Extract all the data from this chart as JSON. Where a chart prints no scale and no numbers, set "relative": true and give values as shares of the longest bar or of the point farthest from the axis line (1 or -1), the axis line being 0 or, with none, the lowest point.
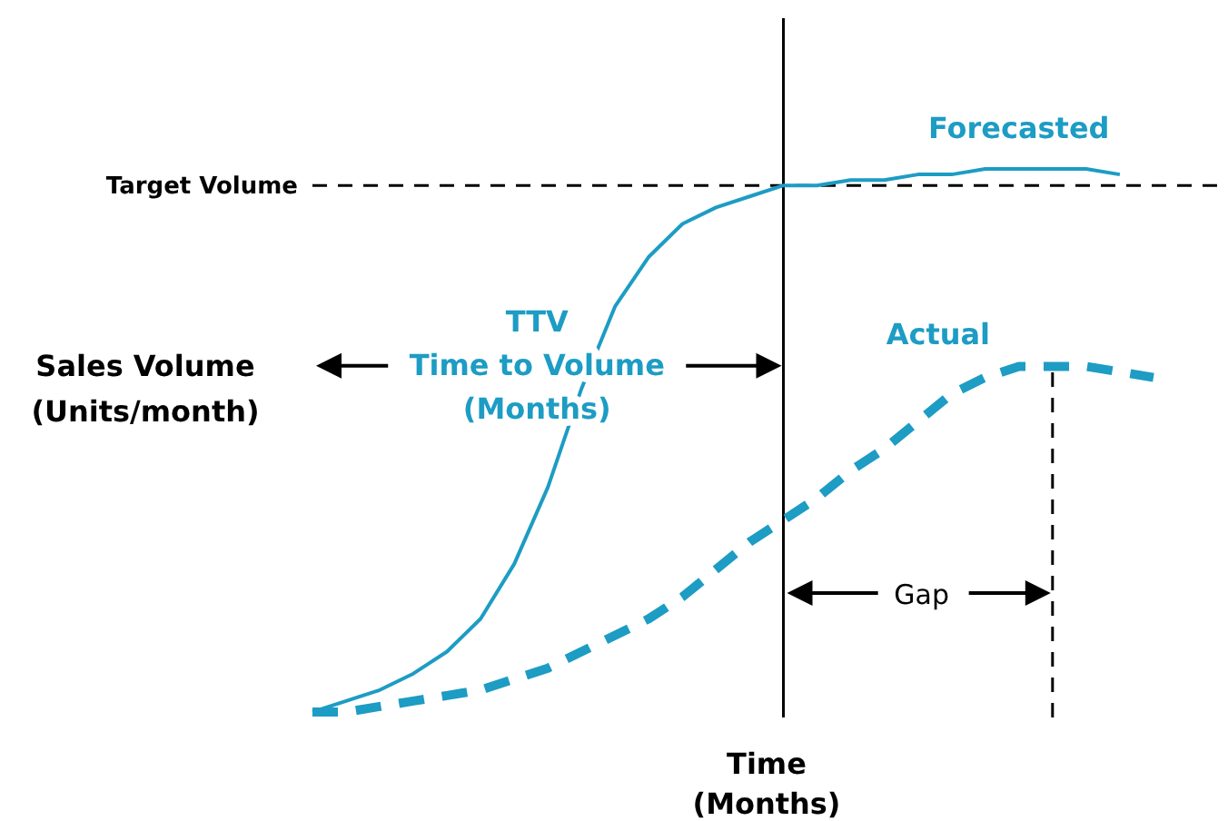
{
  "chart_data": {
    "type": "line",
    "relative": true,
    "xlabel": "Time\n(Months)",
    "ylabel": "Sales Volume\n(Units/month)",
    "categories": [
      null,
      null,
      null,
      null,
      null,
      null,
      null,
      null,
      null,
      null,
      null,
      null,
      null,
      null,
      null,
      null,
      null,
      null,
      null,
      null,
      null,
      null,
      null,
      null,
      null,
      null,
      null,
      null
    ],
    "series": [
      {
        "name": "Forecasted",
        "color": "#1d9cc4",
        "line_style": "solid",
        "values": [
          0.01,
          0.03,
          0.05,
          0.08,
          0.12,
          0.18,
          0.28,
          0.42,
          0.6,
          0.75,
          0.84,
          0.9,
          0.93,
          0.95,
          0.97,
          0.97,
          0.98,
          0.98,
          0.99,
          0.99,
          1,
          1,
          1,
          1,
          0.99,
          null,
          null,
          null
        ]
      },
      {
        "name": "Actual",
        "color": "#1d9cc4",
        "line_style": "dashed",
        "values": [
          0.01,
          0.01,
          0.02,
          0.03,
          0.04,
          0.05,
          0.07,
          0.09,
          0.12,
          0.15,
          0.18,
          0.22,
          0.27,
          0.32,
          0.36,
          0.4,
          0.45,
          0.49,
          0.54,
          0.59,
          0.62,
          0.64,
          0.64,
          0.64,
          0.63,
          0.62,
          null,
          null
        ]
      }
    ],
    "ref_lines": [
      {
        "axis": "y",
        "value": 0.97,
        "label": "Target Volume",
        "color": "#000000",
        "line_style": "dashed"
      }
    ],
    "annotations": [
      "TTV\nTime to Volume\n(Months)",
      "Gap"
    ],
    "legend": false,
    "grid": false,
    "marker": "none"
  }
}
